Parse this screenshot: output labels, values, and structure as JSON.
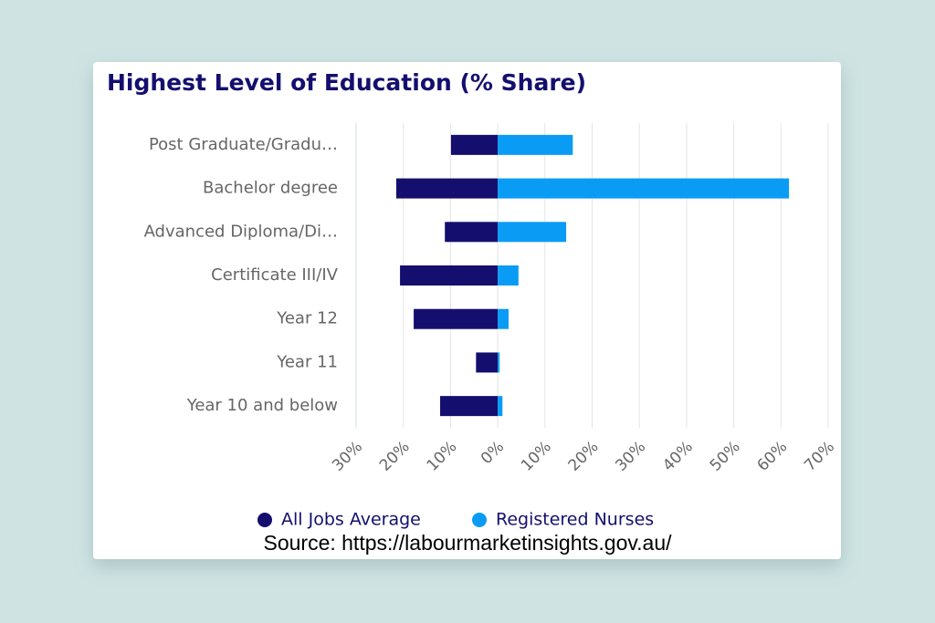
{
  "chart_data": {
    "type": "bar",
    "orientation": "horizontal",
    "title": "Highest Level of Education (% Share)",
    "categories": [
      "Post Graduate/Gradu…",
      "Bachelor degree",
      "Advanced Diploma/Di…",
      "Certificate III/IV",
      "Year 12",
      "Year 11",
      "Year 10 and below"
    ],
    "series": [
      {
        "name": "All Jobs Average",
        "color": "#140f6e",
        "values": [
          -9.9,
          -21.5,
          -11.2,
          -20.7,
          -17.8,
          -4.6,
          -12.2
        ]
      },
      {
        "name": "Registered Nurses",
        "color": "#0a9cf5",
        "values": [
          15.9,
          61.7,
          14.5,
          4.4,
          2.3,
          0.4,
          1.0
        ]
      }
    ],
    "xlim": [
      -30,
      70
    ],
    "xticks": [
      {
        "value": -30,
        "label": "30%"
      },
      {
        "value": -20,
        "label": "20%"
      },
      {
        "value": -10,
        "label": "10%"
      },
      {
        "value": 0,
        "label": "0%"
      },
      {
        "value": 10,
        "label": "10%"
      },
      {
        "value": 20,
        "label": "20%"
      },
      {
        "value": 30,
        "label": "30%"
      },
      {
        "value": 40,
        "label": "40%"
      },
      {
        "value": 50,
        "label": "50%"
      },
      {
        "value": 60,
        "label": "60%"
      },
      {
        "value": 70,
        "label": "70%"
      }
    ],
    "grid": true,
    "legend": "bottom",
    "source": "Source: https://labourmarketinsights.gov.au/"
  }
}
